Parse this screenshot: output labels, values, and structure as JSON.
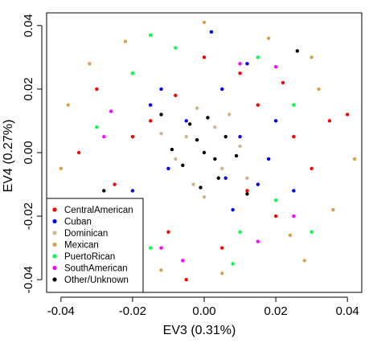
{
  "chart_data": {
    "type": "scatter",
    "xlabel": "EV3 (0.31%)",
    "ylabel": "EV4 (0.27%)",
    "xlim": [
      -0.044,
      0.044
    ],
    "ylim": [
      -0.044,
      0.044
    ],
    "x_ticks": [
      -0.04,
      -0.02,
      0.0,
      0.02,
      0.04
    ],
    "y_ticks": [
      -0.04,
      -0.02,
      0.0,
      0.02,
      0.04
    ],
    "x_tick_labels": [
      "-0.04",
      "-0.02",
      "0.00",
      "0.02",
      "0.04"
    ],
    "y_tick_labels": [
      "-0.04",
      "-0.02",
      "0.00",
      "0.02",
      "0.04"
    ],
    "grid": false,
    "legend_position": "bottom-left",
    "series": [
      {
        "name": "CentralAmerican",
        "color": "#ff0000",
        "points": [
          [
            -0.03,
            0.02
          ],
          [
            -0.025,
            -0.01
          ],
          [
            0.02,
            -0.02
          ],
          [
            0.01,
            0.025
          ],
          [
            -0.015,
            0.01
          ],
          [
            0.005,
            -0.03
          ],
          [
            0.025,
            0.005
          ],
          [
            -0.01,
            -0.025
          ],
          [
            0.015,
            0.015
          ],
          [
            -0.02,
            0.005
          ],
          [
            0.03,
            -0.005
          ],
          [
            -0.035,
            0.0
          ],
          [
            0.0,
            0.03
          ],
          [
            0.012,
            -0.012
          ],
          [
            -0.008,
            0.018
          ],
          [
            0.022,
            0.022
          ],
          [
            -0.018,
            -0.018
          ],
          [
            0.035,
            0.01
          ],
          [
            -0.005,
            -0.04
          ],
          [
            0.04,
            0.012
          ]
        ]
      },
      {
        "name": "Cuban",
        "color": "#0000ff",
        "points": [
          [
            -0.015,
            0.015
          ],
          [
            0.01,
            0.005
          ],
          [
            0.015,
            -0.01
          ],
          [
            -0.01,
            -0.005
          ],
          [
            0.005,
            0.02
          ],
          [
            0.02,
            0.01
          ],
          [
            -0.005,
            0.01
          ],
          [
            0.008,
            -0.018
          ],
          [
            0.018,
            -0.002
          ],
          [
            -0.012,
            0.02
          ],
          [
            0.002,
            0.038
          ],
          [
            0.025,
            -0.012
          ],
          [
            -0.02,
            -0.012
          ],
          [
            0.012,
            0.028
          ],
          [
            0.006,
            -0.008
          ]
        ]
      },
      {
        "name": "Dominican",
        "color": "#d2b48c",
        "points": [
          [
            0.0,
            0.0
          ],
          [
            -0.005,
            0.005
          ],
          [
            0.005,
            -0.005
          ],
          [
            0.003,
            0.008
          ],
          [
            -0.008,
            -0.002
          ],
          [
            0.01,
            0.002
          ],
          [
            -0.003,
            -0.01
          ],
          [
            0.007,
            0.012
          ],
          [
            -0.012,
            0.006
          ],
          [
            0.012,
            -0.008
          ],
          [
            -0.002,
            0.014
          ],
          [
            0.0,
            -0.014
          ]
        ]
      },
      {
        "name": "Mexican",
        "color": "#daa04a",
        "points": [
          [
            -0.038,
            0.015
          ],
          [
            0.036,
            -0.018
          ],
          [
            -0.03,
            -0.03
          ],
          [
            0.03,
            0.03
          ],
          [
            0.0,
            0.041
          ],
          [
            -0.022,
            0.035
          ],
          [
            0.028,
            -0.034
          ],
          [
            0.042,
            -0.002
          ],
          [
            -0.04,
            -0.005
          ],
          [
            -0.012,
            -0.037
          ],
          [
            0.018,
            0.036
          ],
          [
            -0.032,
            0.028
          ],
          [
            0.032,
            0.02
          ],
          [
            0.005,
            -0.038
          ],
          [
            -0.025,
            -0.022
          ],
          [
            0.024,
            -0.026
          ]
        ]
      },
      {
        "name": "PuertoRican",
        "color": "#00ff44",
        "points": [
          [
            -0.02,
            0.025
          ],
          [
            0.01,
            -0.025
          ],
          [
            -0.025,
            -0.02
          ],
          [
            0.025,
            0.015
          ],
          [
            -0.015,
            -0.03
          ],
          [
            0.02,
            -0.015
          ],
          [
            -0.008,
            0.033
          ],
          [
            0.015,
            0.03
          ],
          [
            -0.03,
            0.008
          ],
          [
            0.03,
            -0.025
          ],
          [
            -0.015,
            0.037
          ],
          [
            0.008,
            -0.035
          ]
        ]
      },
      {
        "name": "SouthAmerican",
        "color": "#ff00ff",
        "points": [
          [
            -0.028,
            0.005
          ],
          [
            -0.02,
            -0.028
          ],
          [
            0.02,
            0.027
          ],
          [
            -0.012,
            -0.03
          ],
          [
            0.025,
            -0.02
          ],
          [
            -0.032,
            -0.015
          ],
          [
            0.015,
            -0.028
          ],
          [
            -0.006,
            -0.034
          ],
          [
            -0.026,
            0.013
          ],
          [
            0.01,
            0.028
          ]
        ]
      },
      {
        "name": "Other/Unknown",
        "color": "#000000",
        "points": [
          [
            0.0,
            0.0
          ],
          [
            -0.002,
            0.004
          ],
          [
            0.003,
            -0.002
          ],
          [
            0.006,
            0.005
          ],
          [
            -0.006,
            -0.004
          ],
          [
            0.004,
            -0.008
          ],
          [
            -0.004,
            0.009
          ],
          [
            0.009,
            -0.001
          ],
          [
            -0.009,
            0.001
          ],
          [
            0.001,
            0.011
          ],
          [
            -0.001,
            -0.011
          ],
          [
            0.026,
            0.032
          ],
          [
            -0.028,
            -0.012
          ],
          [
            0.012,
            -0.013
          ],
          [
            -0.012,
            0.012
          ]
        ]
      }
    ]
  }
}
